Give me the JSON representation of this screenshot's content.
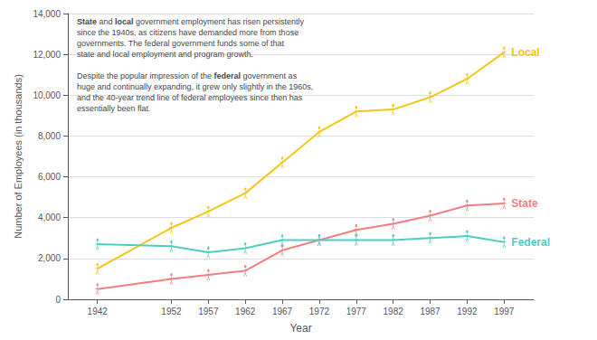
{
  "chart_data": {
    "type": "line",
    "x": [
      1942,
      1952,
      1957,
      1962,
      1967,
      1972,
      1977,
      1982,
      1987,
      1992,
      1997
    ],
    "series": [
      {
        "name": "Local",
        "color": "#f5c518",
        "values": [
          1500,
          3500,
          4300,
          5200,
          6700,
          8200,
          9200,
          9300,
          9900,
          10800,
          12100
        ]
      },
      {
        "name": "State",
        "color": "#f08080",
        "values": [
          500,
          1000,
          1200,
          1400,
          2400,
          2900,
          3400,
          3700,
          4100,
          4600,
          4700
        ]
      },
      {
        "name": "Federal",
        "color": "#4ecdc4",
        "values": [
          2700,
          2600,
          2300,
          2500,
          2900,
          2900,
          2900,
          2900,
          3000,
          3100,
          2800
        ]
      }
    ],
    "xlabel": "Year",
    "ylabel": "Number of Employees (in thousands)",
    "xlim": [
      1938,
      2001
    ],
    "xticks": [
      1942,
      1952,
      1957,
      1962,
      1967,
      1972,
      1977,
      1982,
      1987,
      1992,
      1997
    ],
    "ylim": [
      0,
      14000
    ],
    "yticks": [
      0,
      {
        "value": 2000,
        "label": "2,000"
      },
      {
        "value": 4000,
        "label": "4,000"
      },
      {
        "value": 6000,
        "label": "6,000"
      },
      {
        "value": 8000,
        "label": "8,000"
      },
      {
        "value": 10000,
        "label": "10,000"
      },
      {
        "value": 12000,
        "label": "12,000"
      },
      {
        "value": 14000,
        "label": "14,000"
      }
    ],
    "grid": true,
    "marker": "person",
    "annotations": [
      [
        [
          {
            "text": "State",
            "series": "State"
          },
          {
            "text": " and "
          },
          {
            "text": "local",
            "series": "Local"
          },
          {
            "text": " government employment has risen persistently"
          }
        ],
        [
          {
            "text": "since the 1940s, as citizens have demanded more from those"
          }
        ],
        [
          {
            "text": "governments. The federal government funds some of that"
          }
        ],
        [
          {
            "text": "state and local employment and program growth."
          }
        ]
      ],
      [
        [
          {
            "text": "Despite the popular impression of the "
          },
          {
            "text": "federal",
            "series": "Federal"
          },
          {
            "text": " government as"
          }
        ],
        [
          {
            "text": "huge and continually expanding, it grew only slightly in the 1960s,"
          }
        ],
        [
          {
            "text": "and the 40-year trend line of federal employees since then has"
          }
        ],
        [
          {
            "text": "essentially been flat."
          }
        ]
      ]
    ]
  }
}
